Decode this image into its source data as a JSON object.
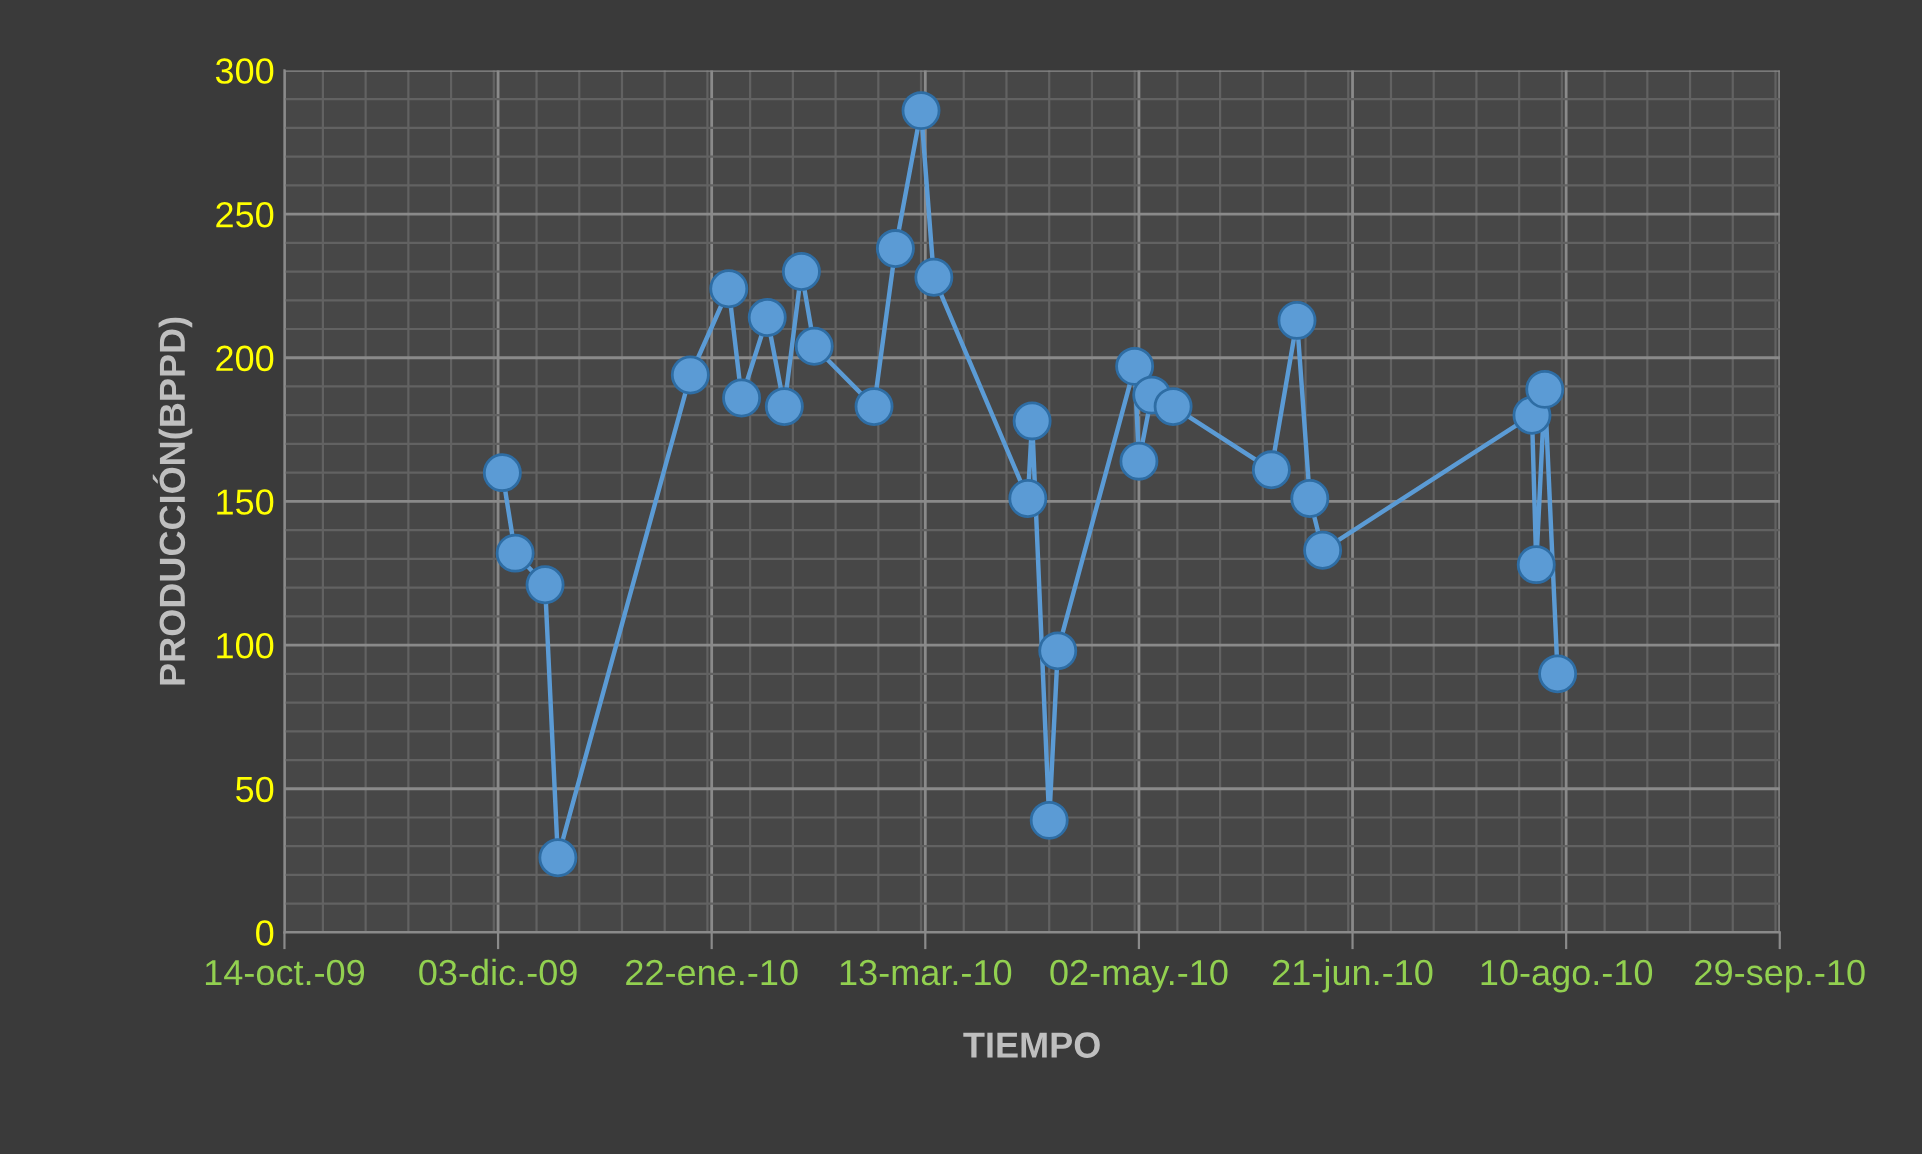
{
  "chart_data": {
    "type": "line",
    "xlabel": "TIEMPO",
    "ylabel": "PRODUCCIÓN(BPPD)",
    "x": [
      "2009-12-04",
      "2009-12-07",
      "2009-12-14",
      "2009-12-17",
      "2010-01-17",
      "2010-01-26",
      "2010-01-29",
      "2010-02-04",
      "2010-02-08",
      "2010-02-12",
      "2010-02-15",
      "2010-03-01",
      "2010-03-06",
      "2010-03-12",
      "2010-03-15",
      "2010-04-06",
      "2010-04-07",
      "2010-04-11",
      "2010-04-13",
      "2010-05-01",
      "2010-05-02",
      "2010-05-05",
      "2010-05-10",
      "2010-06-02",
      "2010-06-08",
      "2010-06-11",
      "2010-06-14",
      "2010-08-02",
      "2010-08-03",
      "2010-08-05",
      "2010-08-08"
    ],
    "series": [
      {
        "color": "#5b9bd5",
        "values": [
          160,
          132,
          121,
          26,
          194,
          224,
          186,
          214,
          183,
          230,
          204,
          183,
          238,
          286,
          228,
          151,
          178,
          39,
          98,
          197,
          164,
          187,
          183,
          161,
          213,
          151,
          133,
          180,
          128,
          189,
          90
        ]
      }
    ],
    "xlim": [
      "2009-10-14",
      "2010-09-29"
    ],
    "xticks": [
      {
        "value": "2009-10-14",
        "label": "14-oct.-09"
      },
      {
        "value": "2009-12-03",
        "label": "03-dic.-09"
      },
      {
        "value": "2010-01-22",
        "label": "22-ene.-10"
      },
      {
        "value": "2010-03-13",
        "label": "13-mar.-10"
      },
      {
        "value": "2010-05-02",
        "label": "02-may.-10"
      },
      {
        "value": "2010-06-21",
        "label": "21-jun.-10"
      },
      {
        "value": "2010-08-10",
        "label": "10-ago.-10"
      },
      {
        "value": "2010-09-29",
        "label": "29-sep.-10"
      }
    ],
    "ylim": [
      0,
      300
    ],
    "yticks": [
      0,
      50,
      100,
      150,
      200,
      250,
      300
    ],
    "grid": true,
    "marker": "circle",
    "line_style": "solid",
    "legend": false
  }
}
